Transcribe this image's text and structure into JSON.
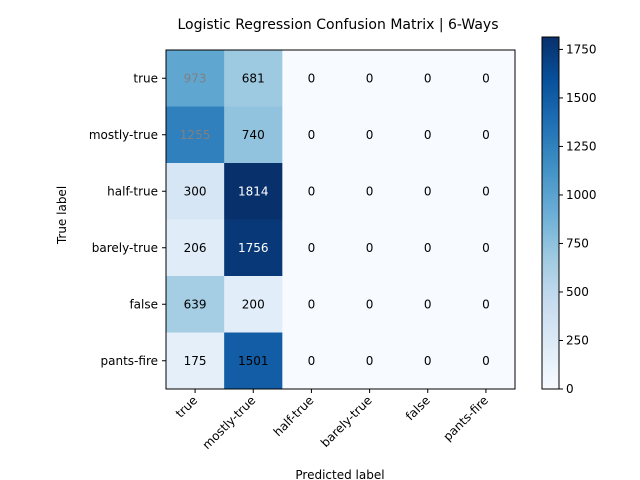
{
  "chart_data": {
    "type": "heatmap",
    "title": "Logistic Regression Confusion Matrix | 6-Ways",
    "xlabel": "Predicted label",
    "ylabel": "True label",
    "x_categories": [
      "true",
      "mostly-true",
      "half-true",
      "barely-true",
      "false",
      "pants-fire"
    ],
    "y_categories": [
      "true",
      "mostly-true",
      "half-true",
      "barely-true",
      "false",
      "pants-fire"
    ],
    "values": [
      [
        973,
        681,
        0,
        0,
        0,
        0
      ],
      [
        1255,
        740,
        0,
        0,
        0,
        0
      ],
      [
        300,
        1814,
        0,
        0,
        0,
        0
      ],
      [
        206,
        1756,
        0,
        0,
        0,
        0
      ],
      [
        639,
        200,
        0,
        0,
        0,
        0
      ],
      [
        175,
        1501,
        0,
        0,
        0,
        0
      ]
    ],
    "colormap": "Blues",
    "colorbar": {
      "range": [
        0,
        1814
      ],
      "ticks": [
        "0",
        "250",
        "500",
        "750",
        "1000",
        "1250",
        "1500",
        "1750"
      ]
    },
    "cell_text_colors": {
      "low": "#000000",
      "mid": "#808080",
      "high": "#ffffff"
    }
  }
}
